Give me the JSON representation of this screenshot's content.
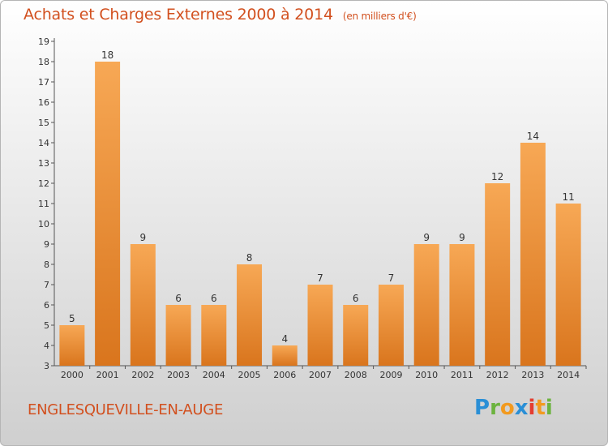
{
  "header": {
    "title": "Achats et Charges Externes 2000 à 2014",
    "unit": "(en milliers d'€)"
  },
  "footer": {
    "commune": "ENGLESQUEVILLE-EN-AUGE",
    "logo_text": "Proxiti"
  },
  "colors": {
    "bar_light": "#f7a855",
    "bar_dark": "#d9751d",
    "axis": "#555555",
    "text": "#333333",
    "accent": "#d2501f"
  },
  "chart_data": {
    "type": "bar",
    "title": "Achats et Charges Externes 2000 à 2014",
    "categories": [
      "2000",
      "2001",
      "2002",
      "2003",
      "2004",
      "2005",
      "2006",
      "2007",
      "2008",
      "2009",
      "2010",
      "2011",
      "2012",
      "2013",
      "2014"
    ],
    "values": [
      5,
      18,
      9,
      6,
      6,
      8,
      4,
      7,
      6,
      7,
      9,
      9,
      12,
      14,
      11
    ],
    "ylim": [
      3,
      19
    ],
    "yticks": [
      3,
      4,
      5,
      6,
      7,
      8,
      9,
      10,
      11,
      12,
      13,
      14,
      15,
      16,
      17,
      18,
      19
    ],
    "grid": false,
    "data_labels": true
  }
}
